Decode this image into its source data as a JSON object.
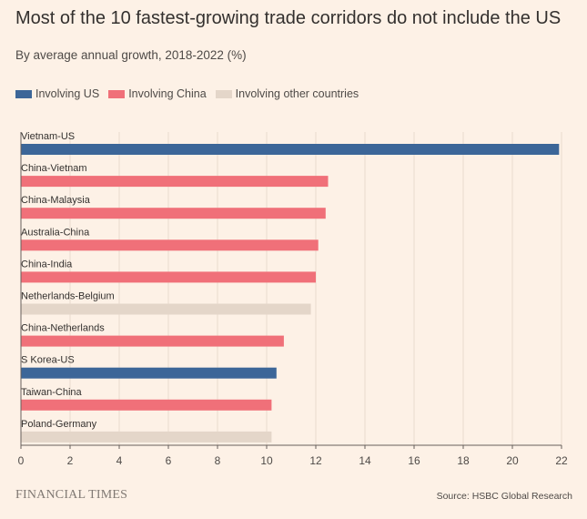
{
  "title": "Most of the 10 fastest-growing trade corridors do not include the US",
  "subtitle": "By average annual growth, 2018-2022 (%)",
  "legend": [
    {
      "key": "us",
      "label": "Involving US",
      "color": "#3c6698"
    },
    {
      "key": "china",
      "label": "Involving China",
      "color": "#f07079"
    },
    {
      "key": "other",
      "label": "Involving other countries",
      "color": "#e4d6c9"
    }
  ],
  "footer": {
    "brand": "FINANCIAL TIMES",
    "source": "Source: HSBC Global Research"
  },
  "chart_data": {
    "type": "bar",
    "orientation": "horizontal",
    "title": "Most of the 10 fastest-growing trade corridors do not include the US",
    "subtitle": "By average annual growth, 2018-2022 (%)",
    "xlabel": "",
    "ylabel": "",
    "xlim": [
      0,
      22
    ],
    "xticks": [
      0,
      2,
      4,
      6,
      8,
      10,
      12,
      14,
      16,
      18,
      20,
      22
    ],
    "grid": "vertical",
    "categories": [
      "Vietnam-US",
      "China-Vietnam",
      "China-Malaysia",
      "Australia-China",
      "China-India",
      "Netherlands-Belgium",
      "China-Netherlands",
      "S Korea-US",
      "Taiwan-China",
      "Poland-Germany"
    ],
    "values": [
      21.9,
      12.5,
      12.4,
      12.1,
      12.0,
      11.8,
      10.7,
      10.4,
      10.2,
      10.2
    ],
    "groups": [
      "us",
      "china",
      "china",
      "china",
      "china",
      "other",
      "china",
      "us",
      "china",
      "other"
    ]
  }
}
